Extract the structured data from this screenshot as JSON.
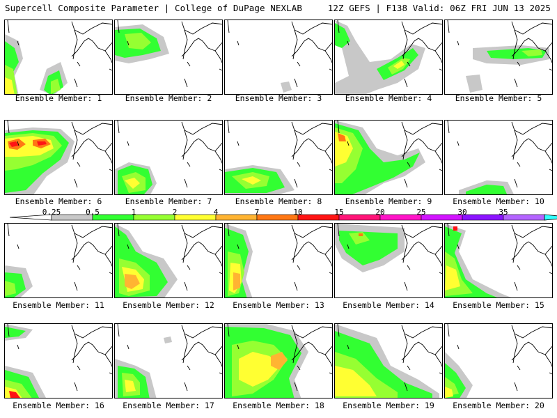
{
  "header": {
    "left": "Supercell Composite Parameter | College of DuPage NEXLAB",
    "right": "12Z GEFS | F138 Valid: 06Z FRI JUN 13 2025"
  },
  "members": [
    {
      "label": "Ensemble Member: 1"
    },
    {
      "label": "Ensemble Member: 2"
    },
    {
      "label": "Ensemble Member: 3"
    },
    {
      "label": "Ensemble Member: 4"
    },
    {
      "label": "Ensemble Member: 5"
    },
    {
      "label": "Ensemble Member: 6"
    },
    {
      "label": "Ensemble Member: 7"
    },
    {
      "label": "Ensemble Member: 8"
    },
    {
      "label": "Ensemble Member: 9"
    },
    {
      "label": "Ensemble Member: 10"
    },
    {
      "label": "Ensemble Member: 11"
    },
    {
      "label": "Ensemble Member: 12"
    },
    {
      "label": "Ensemble Member: 13"
    },
    {
      "label": "Ensemble Member: 14"
    },
    {
      "label": "Ensemble Member: 15"
    },
    {
      "label": "Ensemble Member: 16"
    },
    {
      "label": "Ensemble Member: 17"
    },
    {
      "label": "Ensemble Member: 18"
    },
    {
      "label": "Ensemble Member: 19"
    },
    {
      "label": "Ensemble Member: 20"
    }
  ],
  "legend": {
    "ticks": [
      "0.25",
      "0.5",
      "1",
      "2",
      "4",
      "7",
      "10",
      "15",
      "20",
      "25",
      "30",
      "35"
    ],
    "colors": [
      "#c8c8c8",
      "#32ff32",
      "#96ff32",
      "#ffff32",
      "#ffb432",
      "#ff7814",
      "#ff1414",
      "#ff1478",
      "#ff14c8",
      "#d214ff",
      "#8c14ff",
      "#b464ff",
      "#32ffff"
    ]
  }
}
